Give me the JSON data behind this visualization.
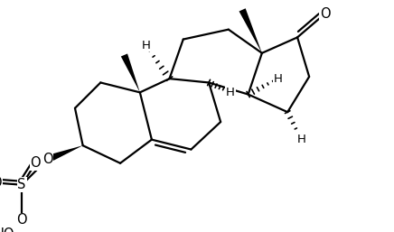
{
  "bg_color": "#ffffff",
  "line_color": "#000000",
  "line_width": 1.6,
  "figsize": [
    4.36,
    2.57
  ],
  "dpi": 100,
  "xlim": [
    0,
    10
  ],
  "ylim": [
    0,
    5.9
  ]
}
